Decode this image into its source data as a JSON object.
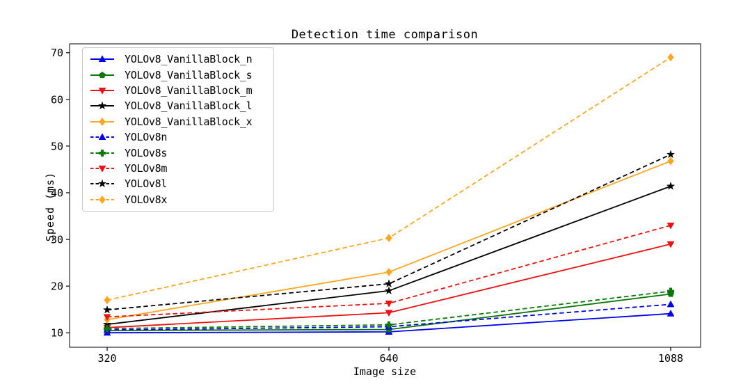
{
  "chart_data": {
    "type": "line",
    "title": "Detection time comparison",
    "xlabel": "Image size",
    "ylabel": "Speed (ms)",
    "categories": [
      "320",
      "640",
      "1088"
    ],
    "yticks": [
      10,
      20,
      30,
      40,
      50,
      60,
      70
    ],
    "ylim": [
      6.9,
      71.9
    ],
    "grid": false,
    "legend_position": "upper left",
    "axis_color": "#000000",
    "series": [
      {
        "name": "YOLOv8_VanillaBlock_n",
        "color": "#0000EE",
        "style": "solid",
        "marker": "triangle-up",
        "values": [
          10.0,
          10.2,
          14.1
        ]
      },
      {
        "name": "YOLOv8_VanillaBlock_s",
        "color": "#087808",
        "style": "solid",
        "marker": "pentagon",
        "values": [
          10.5,
          10.7,
          18.3
        ]
      },
      {
        "name": "YOLOv8_VanillaBlock_m",
        "color": "#EE1111",
        "style": "solid",
        "marker": "triangle-down",
        "values": [
          11.1,
          14.3,
          29.0
        ]
      },
      {
        "name": "YOLOv8_VanillaBlock_l",
        "color": "#000000",
        "style": "solid",
        "marker": "star",
        "values": [
          11.8,
          19.0,
          41.4
        ]
      },
      {
        "name": "YOLOv8_VanillaBlock_x",
        "color": "#FFA620",
        "style": "solid",
        "marker": "diamond",
        "values": [
          12.8,
          23.0,
          46.8
        ]
      },
      {
        "name": "YOLOv8n",
        "color": "#0000EE",
        "style": "dashed",
        "marker": "triangle-up",
        "values": [
          10.6,
          11.3,
          16.1
        ]
      },
      {
        "name": "YOLOv8s",
        "color": "#087808",
        "style": "dashed",
        "marker": "plus",
        "values": [
          10.9,
          11.7,
          18.9
        ]
      },
      {
        "name": "YOLOv8m",
        "color": "#EE1111",
        "style": "dashed",
        "marker": "triangle-down",
        "values": [
          13.4,
          16.3,
          33.0
        ]
      },
      {
        "name": "YOLOv8l",
        "color": "#000000",
        "style": "dashed",
        "marker": "star",
        "values": [
          14.9,
          20.5,
          48.2
        ]
      },
      {
        "name": "YOLOv8x",
        "color": "#FFA620",
        "style": "dashed",
        "marker": "diamond",
        "values": [
          17.0,
          30.3,
          69.0
        ]
      }
    ]
  }
}
